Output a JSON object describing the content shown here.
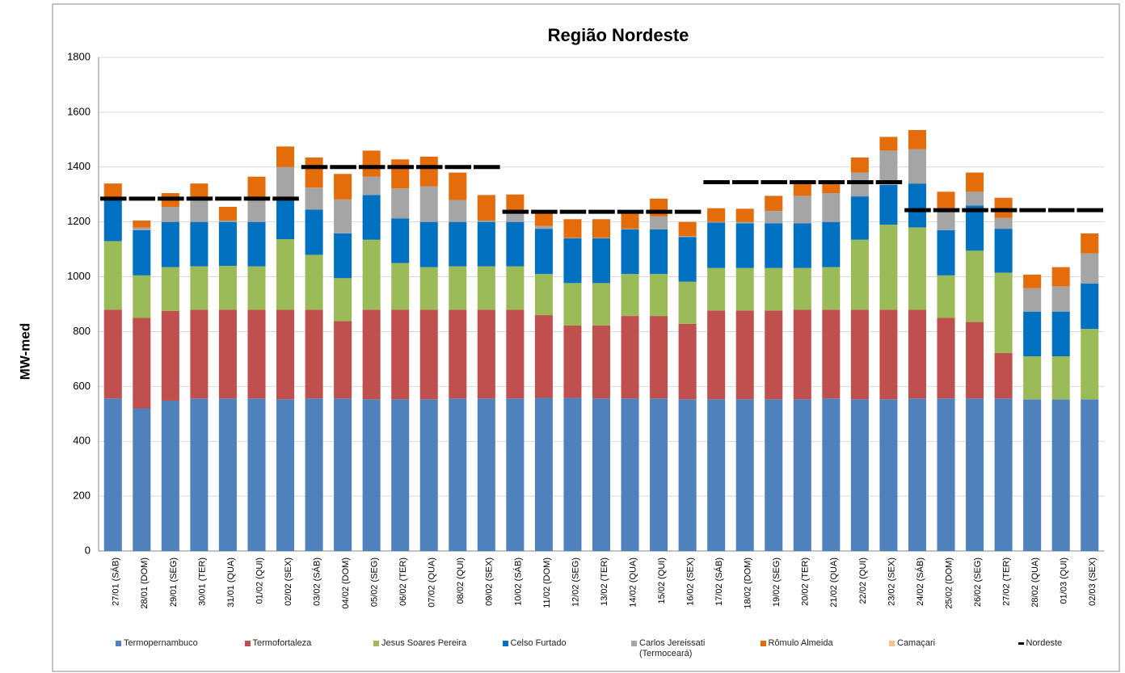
{
  "chart_data": {
    "type": "stacked_bar",
    "title": "Região Nordeste",
    "ylabel": "MW-med",
    "categories": [
      "27/01 (SÁB)",
      "28/01 (DOM)",
      "29/01 (SEG)",
      "30/01 (TER)",
      "31/01 (QUA)",
      "01/02 (QUI)",
      "02/02 (SEX)",
      "03/02 (SÁB)",
      "04/02 (DOM)",
      "05/02 (SEG)",
      "06/02 (TER)",
      "07/02 (QUA)",
      "08/02 (QUI)",
      "09/02 (SEX)",
      "10/02 (SÁB)",
      "11/02 (DOM)",
      "12/02 (SEG)",
      "13/02 (TER)",
      "14/02 (QUA)",
      "15/02 (QUI)",
      "16/02 (SEX)",
      "17/02 (SÁB)",
      "18/02 (DOM)",
      "19/02 (SEG)",
      "20/02 (TER)",
      "21/02 (QUA)",
      "22/02 (QUI)",
      "23/02 (SEX)",
      "24/02 (SÁB)",
      "25/02 (DOM)",
      "26/02 (SEG)",
      "27/02 (TER)",
      "28/02 (QUA)",
      "01/03 (QUI)",
      "02/03 (SEX)"
    ],
    "series": [
      {
        "name": "Termopernambuco",
        "color": "#4f81bd",
        "values": [
          556,
          520,
          548,
          556,
          556,
          556,
          553,
          556,
          556,
          553,
          553,
          553,
          556,
          556,
          556,
          558,
          558,
          556,
          556,
          556,
          553,
          553,
          553,
          553,
          553,
          556,
          553,
          553,
          556,
          556,
          556,
          556,
          553,
          553,
          553
        ]
      },
      {
        "name": "Termofortaleza",
        "color": "#c0504d",
        "values": [
          324,
          330,
          327,
          324,
          324,
          324,
          327,
          324,
          282,
          327,
          327,
          327,
          324,
          324,
          324,
          302,
          264,
          266,
          301,
          301,
          275,
          324,
          324,
          324,
          327,
          324,
          327,
          327,
          324,
          294,
          279,
          166,
          0,
          0,
          0
        ]
      },
      {
        "name": "Jesus Soares Pereira",
        "color": "#9bbb59",
        "values": [
          250,
          155,
          160,
          158,
          160,
          158,
          257,
          200,
          157,
          255,
          170,
          155,
          158,
          158,
          158,
          150,
          155,
          155,
          153,
          153,
          154,
          155,
          155,
          155,
          152,
          155,
          255,
          310,
          300,
          155,
          260,
          293,
          157,
          157,
          257
        ]
      },
      {
        "name": "Celso Furtado",
        "color": "#0070c0",
        "values": [
          150,
          165,
          165,
          162,
          160,
          162,
          143,
          165,
          163,
          163,
          163,
          165,
          162,
          162,
          162,
          165,
          163,
          163,
          163,
          163,
          163,
          166,
          163,
          163,
          163,
          165,
          158,
          145,
          160,
          165,
          165,
          160,
          163,
          163,
          165
        ]
      },
      {
        "name": "Carlos Jereissati (Termoceará)",
        "color": "#a5a5a5",
        "values": [
          5,
          10,
          55,
          90,
          5,
          90,
          120,
          80,
          124,
          67,
          109,
          130,
          80,
          5,
          40,
          10,
          2,
          2,
          2,
          47,
          3,
          2,
          5,
          45,
          100,
          105,
          87,
          125,
          125,
          70,
          50,
          40,
          85,
          92,
          110
        ]
      },
      {
        "name": "Rômulo Almeida",
        "color": "#e46c0a",
        "values": [
          55,
          25,
          50,
          50,
          50,
          75,
          75,
          110,
          93,
          95,
          106,
          108,
          100,
          93,
          60,
          55,
          68,
          68,
          65,
          65,
          52,
          50,
          48,
          55,
          45,
          45,
          55,
          50,
          70,
          70,
          70,
          73,
          50,
          70,
          73
        ]
      },
      {
        "name": "Camaçari",
        "color": "#fac090",
        "values": [
          0,
          0,
          0,
          0,
          0,
          0,
          0,
          0,
          0,
          0,
          0,
          0,
          0,
          0,
          0,
          0,
          0,
          0,
          0,
          0,
          0,
          0,
          0,
          0,
          0,
          0,
          0,
          0,
          0,
          0,
          0,
          0,
          0,
          0,
          0
        ]
      },
      {
        "name": "Nordeste",
        "color": "#000000",
        "type": "line",
        "values": [
          1285,
          1285,
          1285,
          1285,
          1285,
          1285,
          1285,
          1400,
          1400,
          1400,
          1400,
          1400,
          1400,
          1400,
          1237,
          1237,
          1237,
          1237,
          1237,
          1237,
          1237,
          1345,
          1345,
          1345,
          1345,
          1345,
          1345,
          1345,
          1243,
          1243,
          1243,
          1243,
          1243,
          1243,
          1243
        ]
      }
    ],
    "ylim": [
      0,
      1800
    ],
    "yticks": [
      0,
      200,
      400,
      600,
      800,
      1000,
      1200,
      1400,
      1600,
      1800
    ],
    "grid": true,
    "legend": "bottom"
  }
}
